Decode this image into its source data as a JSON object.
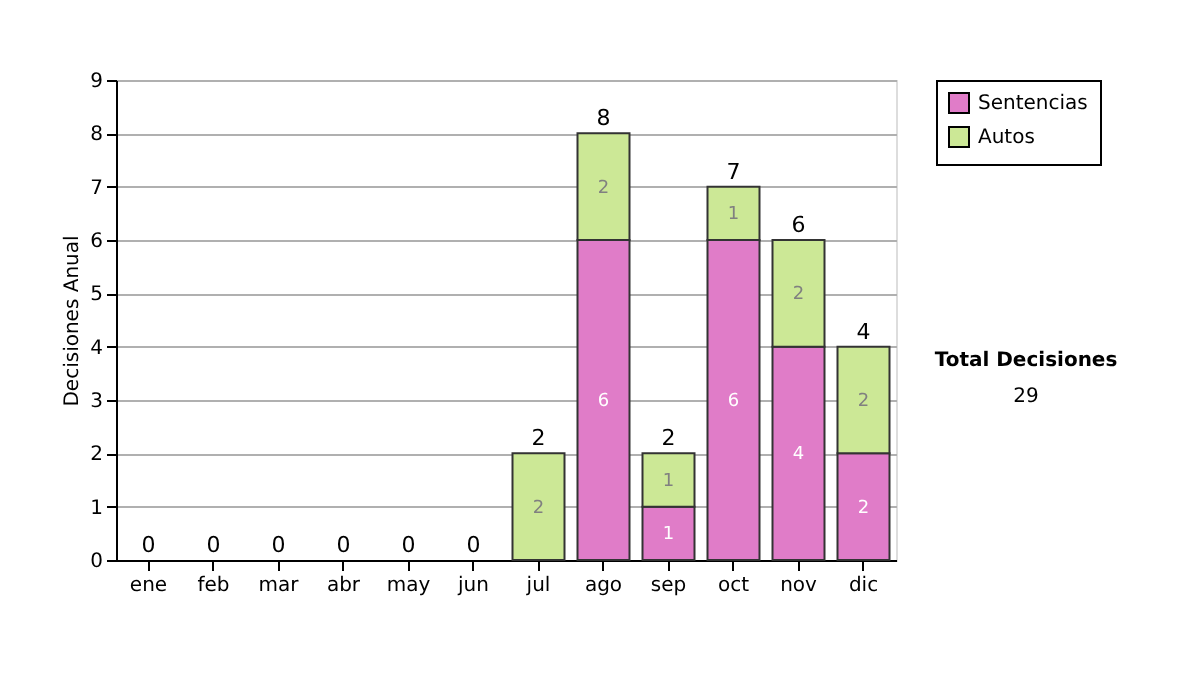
{
  "chart_data": {
    "type": "bar",
    "stacked": true,
    "ylabel": "Decisiones Anual",
    "categories": [
      "ene",
      "feb",
      "mar",
      "abr",
      "may",
      "jun",
      "jul",
      "ago",
      "sep",
      "oct",
      "nov",
      "dic"
    ],
    "series": [
      {
        "name": "Sentencias",
        "color": "#e07cc8",
        "values": [
          0,
          0,
          0,
          0,
          0,
          0,
          0,
          6,
          1,
          6,
          4,
          2
        ],
        "value_labels": [
          null,
          null,
          null,
          null,
          null,
          null,
          null,
          "6",
          "1",
          "6",
          "4",
          "2"
        ]
      },
      {
        "name": "Autos",
        "color": "#cce896",
        "values": [
          0,
          0,
          0,
          0,
          0,
          0,
          2,
          2,
          1,
          1,
          2,
          2
        ],
        "value_labels": [
          null,
          null,
          null,
          null,
          null,
          null,
          "2",
          "2",
          "1",
          "1",
          "2",
          "2"
        ]
      }
    ],
    "totals": [
      "0",
      "0",
      "0",
      "0",
      "0",
      "0",
      "2",
      "8",
      "2",
      "7",
      "6",
      "4"
    ],
    "ylim": [
      0,
      9
    ],
    "yticks": [
      0,
      1,
      2,
      3,
      4,
      5,
      6,
      7,
      8,
      9
    ],
    "grid": "y",
    "legend": "right",
    "annotations": [
      "Total Decisiones",
      "29"
    ]
  }
}
